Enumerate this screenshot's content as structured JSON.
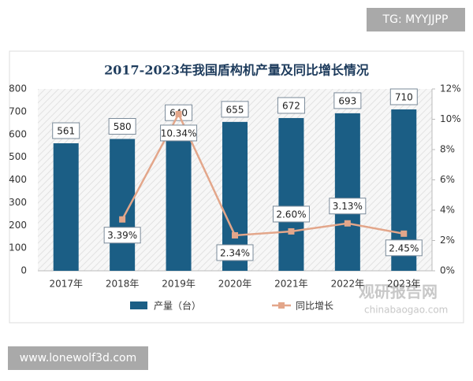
{
  "chart_data": {
    "type": "bar",
    "title": "2017-2023年我国盾构机产量及同比增长情况",
    "categories": [
      "2017年",
      "2018年",
      "2019年",
      "2020年",
      "2021年",
      "2022年",
      "2023年"
    ],
    "series": [
      {
        "name": "产量（台）",
        "type": "bar",
        "color": "#1b5e85",
        "values": [
          561,
          580,
          640,
          655,
          672,
          693,
          710
        ]
      },
      {
        "name": "同比增长",
        "type": "line",
        "axis": "y2",
        "color": "#e3a68a",
        "values": [
          null,
          3.39,
          10.34,
          2.34,
          2.6,
          3.13,
          2.45
        ],
        "value_labels": [
          null,
          "3.39%",
          "10.34%",
          "2.34%",
          "2.60%",
          "3.13%",
          "2.45%"
        ]
      }
    ],
    "ylim": [
      0,
      800
    ],
    "yticks": [
      0,
      100,
      200,
      300,
      400,
      500,
      600,
      700,
      800
    ],
    "y2lim": [
      0,
      12
    ],
    "y2ticks": [
      {
        "value": 0,
        "label": "0%"
      },
      {
        "value": 2,
        "label": "2%"
      },
      {
        "value": 4,
        "label": "4%"
      },
      {
        "value": 6,
        "label": "6%"
      },
      {
        "value": 8,
        "label": "8%"
      },
      {
        "value": 10,
        "label": "10%"
      },
      {
        "value": 12,
        "label": "12%"
      }
    ],
    "grid": false,
    "legend": "bottom"
  },
  "watermarks": {
    "tg": "TG: MYYJJPP",
    "site": "www.lonewolf3d.com",
    "brand": "观研报告网",
    "brand_url": "chinabaogao.com"
  }
}
